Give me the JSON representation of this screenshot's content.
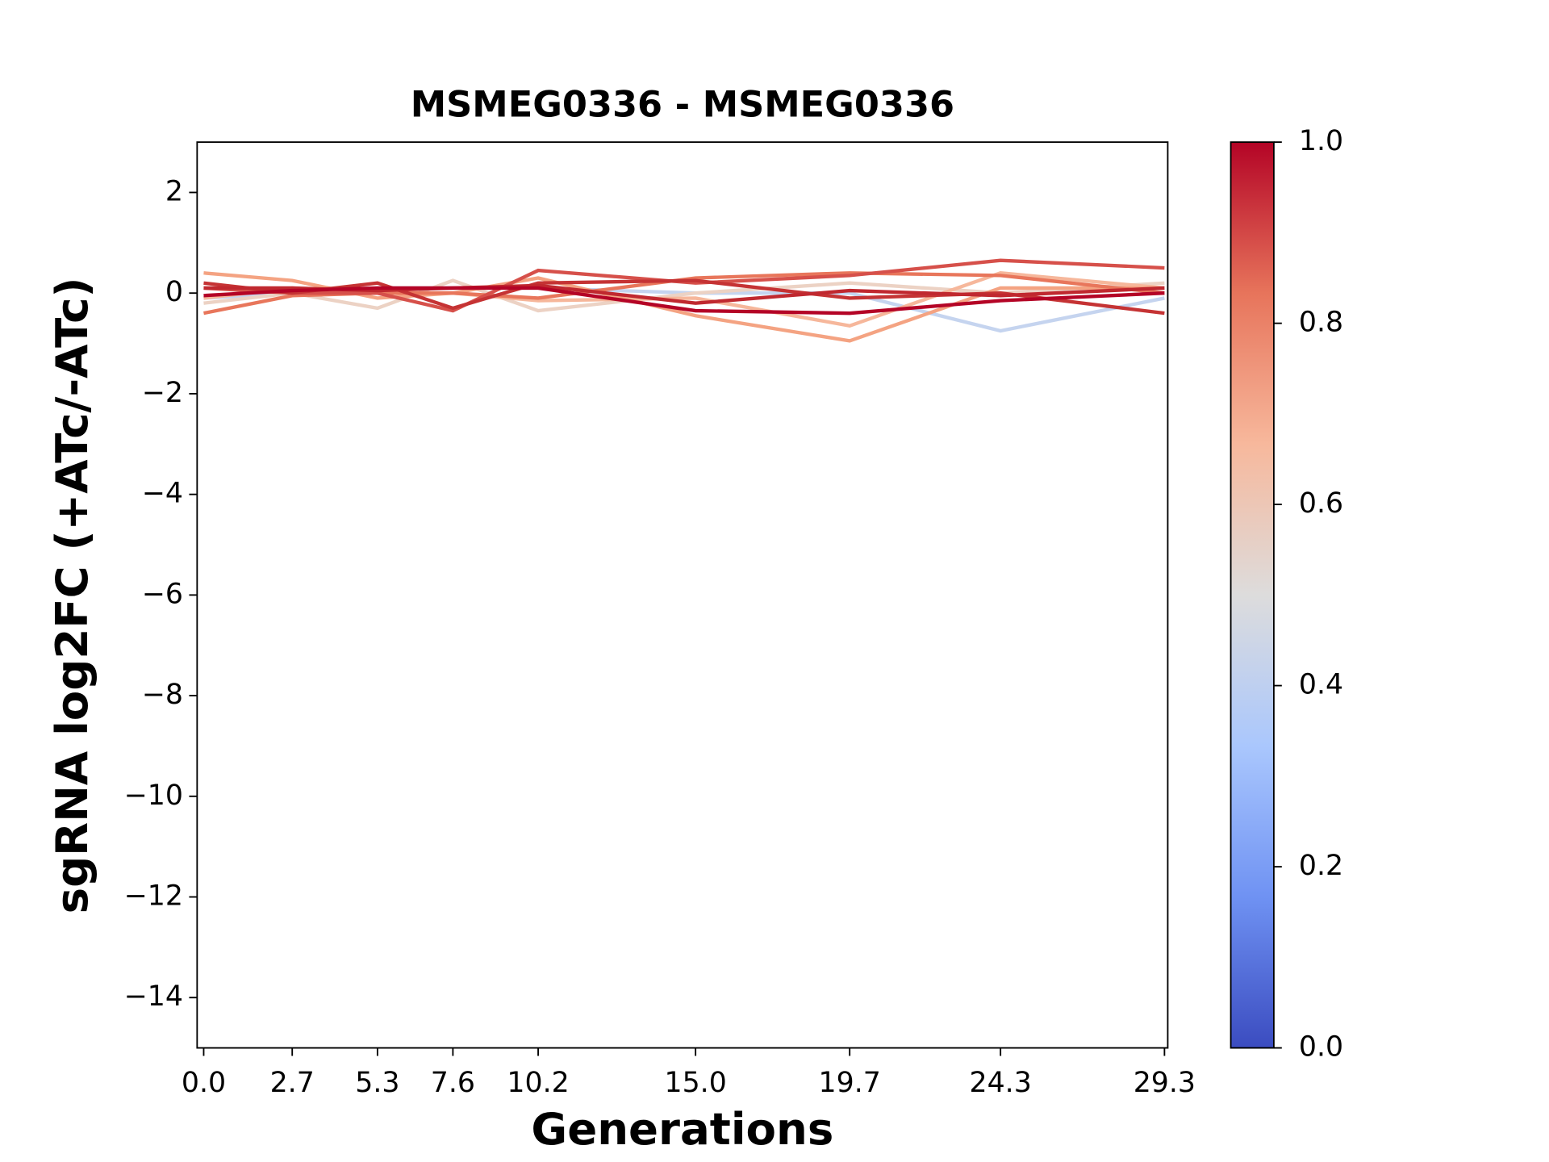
{
  "chart_data": {
    "type": "line",
    "title": "MSMEG0336 - MSMEG0336",
    "x_label": "Generations",
    "y_label": "sgRNA log2FC (+ATc/-ATc)",
    "x": [
      0.0,
      2.7,
      5.3,
      7.6,
      10.2,
      15.0,
      19.7,
      24.3,
      29.3
    ],
    "xlim": [
      -0.2,
      29.4
    ],
    "xticks": [
      {
        "value": 0,
        "label": "0.0"
      },
      2.7,
      5.3,
      7.6,
      10.2,
      {
        "value": 15,
        "label": "15.0"
      },
      19.7,
      24.3,
      29.3
    ],
    "ylim": [
      -15,
      3
    ],
    "yticks": [
      {
        "value": -14,
        "label": "−14"
      },
      {
        "value": -12,
        "label": "−12"
      },
      {
        "value": -10,
        "label": "−10"
      },
      {
        "value": -8,
        "label": "−8"
      },
      {
        "value": -6,
        "label": "−6"
      },
      {
        "value": -4,
        "label": "−4"
      },
      {
        "value": -2,
        "label": "−2"
      },
      0,
      2
    ],
    "grid": false,
    "series": [
      {
        "color": "#c5d4ef",
        "values": [
          -0.1,
          0.0,
          0.1,
          0.1,
          0.1,
          0.0,
          0.0,
          -0.75,
          -0.1
        ]
      },
      {
        "color": "#ecd2c4",
        "values": [
          -0.2,
          0.0,
          -0.3,
          0.25,
          -0.35,
          0.0,
          0.2,
          0.0,
          0.2
        ]
      },
      {
        "color": "#f6b79b",
        "values": [
          -0.1,
          0.1,
          0.0,
          0.0,
          -0.15,
          -0.1,
          -0.65,
          0.4,
          0.1
        ]
      },
      {
        "color": "#f4a382",
        "values": [
          0.4,
          0.25,
          -0.1,
          0.0,
          0.3,
          -0.45,
          -0.95,
          0.1,
          0.1
        ]
      },
      {
        "color": "#e8765b",
        "values": [
          -0.4,
          -0.05,
          0.0,
          0.0,
          -0.1,
          0.3,
          0.4,
          0.35,
          0.0
        ]
      },
      {
        "color": "#d6504a",
        "values": [
          0.1,
          0.0,
          0.0,
          -0.35,
          0.45,
          0.2,
          0.35,
          0.65,
          0.5
        ]
      },
      {
        "color": "#c53334",
        "values": [
          0.2,
          0.0,
          0.2,
          -0.3,
          0.2,
          0.25,
          -0.1,
          0.0,
          -0.4
        ]
      },
      {
        "color": "#c0282f",
        "values": [
          0.1,
          0.1,
          0.05,
          0.1,
          0.15,
          -0.2,
          0.05,
          -0.05,
          0.1
        ]
      },
      {
        "color": "#b40426",
        "values": [
          -0.05,
          0.05,
          0.1,
          0.1,
          0.1,
          -0.35,
          -0.4,
          -0.15,
          0.0
        ]
      }
    ],
    "colorbar": {
      "colormap": "coolwarm",
      "lim": [
        0,
        1
      ],
      "ticks": [
        {
          "value": 0,
          "label": "0.0"
        },
        {
          "value": 0.2,
          "label": "0.2"
        },
        {
          "value": 0.4,
          "label": "0.4"
        },
        {
          "value": 0.6,
          "label": "0.6"
        },
        {
          "value": 0.8,
          "label": "0.8"
        },
        {
          "value": 1,
          "label": "1.0"
        }
      ]
    }
  }
}
